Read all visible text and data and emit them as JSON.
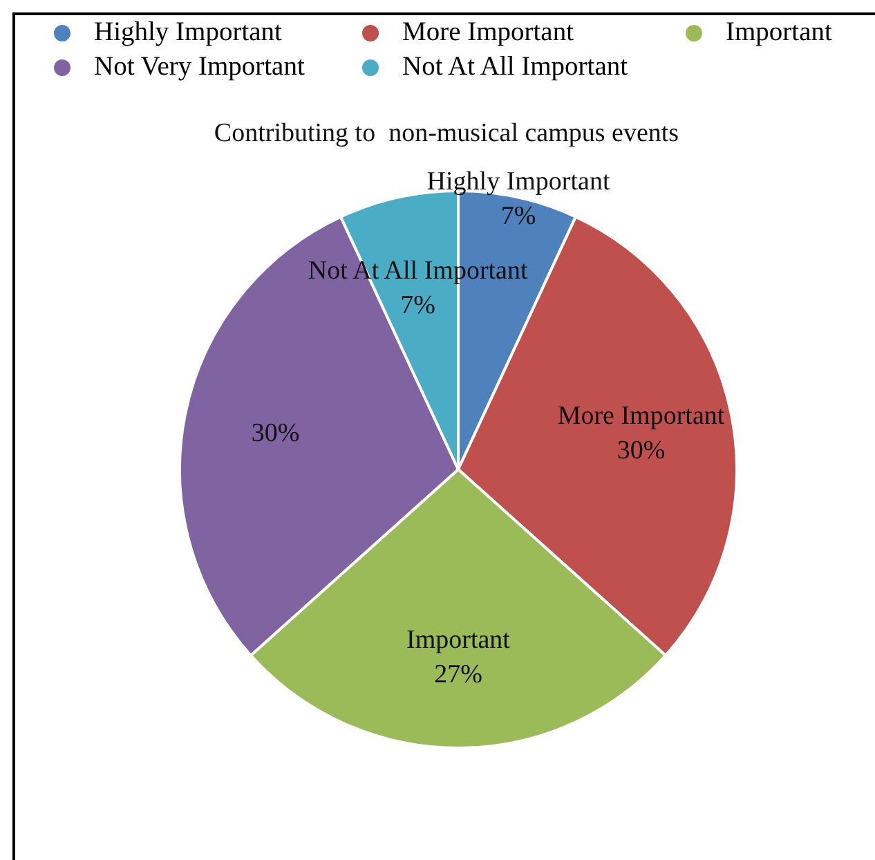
{
  "chart_data": {
    "type": "pie",
    "title": "Contributing to  non-musical campus events",
    "categories": [
      "Highly Important",
      "More Important",
      "Important",
      "Not Very Important",
      "Not At All Important"
    ],
    "values": [
      7,
      30,
      27,
      30,
      7
    ],
    "colors": [
      "#4f81bd",
      "#c0504d",
      "#9bbb59",
      "#8064a2",
      "#4bacc6"
    ],
    "value_labels": [
      "Highly Important\n7%",
      "More Important\n30%",
      "Important\n27%",
      "30%",
      "Not At All Important\n7%"
    ],
    "legend": "top"
  }
}
